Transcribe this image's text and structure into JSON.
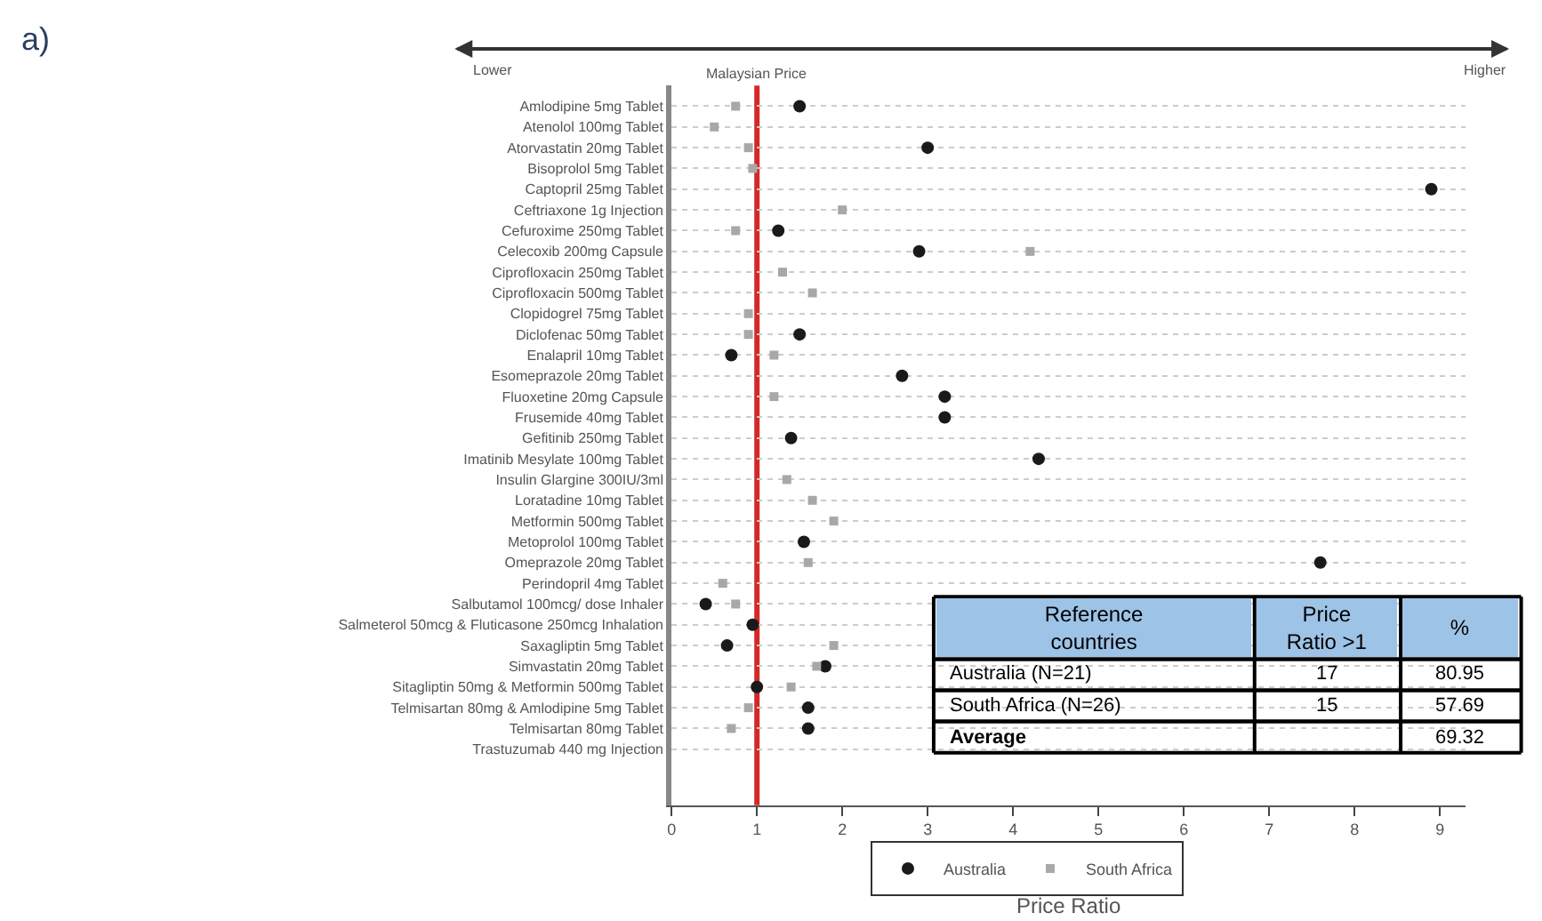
{
  "chart_data": {
    "type": "scatter",
    "xlabel": "Price Ratio",
    "categories": [
      "Amlodipine 5mg Tablet",
      "Atenolol 100mg Tablet",
      "Atorvastatin 20mg Tablet",
      "Bisoprolol 5mg Tablet",
      "Captopril 25mg Tablet",
      "Ceftriaxone 1g Injection",
      "Cefuroxime 250mg Tablet",
      "Celecoxib 200mg Capsule",
      "Ciprofloxacin 250mg Tablet",
      "Ciprofloxacin 500mg Tablet",
      "Clopidogrel 75mg Tablet",
      "Diclofenac 50mg Tablet",
      "Enalapril 10mg Tablet",
      "Esomeprazole 20mg Tablet",
      "Fluoxetine 20mg Capsule",
      "Frusemide 40mg Tablet",
      "Gefitinib 250mg Tablet",
      "Imatinib Mesylate 100mg Tablet",
      "Insulin Glargine 300IU/3ml",
      "Loratadine 10mg Tablet",
      "Metformin 500mg Tablet",
      "Metoprolol 100mg Tablet",
      "Omeprazole 20mg Tablet",
      "Perindopril 4mg Tablet",
      "Salbutamol 100mcg/ dose Inhaler",
      "Salmeterol 50mcg & Fluticasone 250mcg Inhalation",
      "Saxagliptin 5mg Tablet",
      "Simvastatin 20mg Tablet",
      "Sitagliptin 50mg & Metformin 500mg Tablet",
      "Telmisartan 80mg & Amlodipine 5mg Tablet",
      "Telmisartan 80mg Tablet",
      "Trastuzumab 440 mg Injection"
    ],
    "series": [
      {
        "name": "Australia",
        "color": "#1a1a1a",
        "marker": "circle",
        "values": [
          1.5,
          null,
          3.0,
          null,
          8.9,
          null,
          1.25,
          2.9,
          null,
          null,
          null,
          1.5,
          0.7,
          2.7,
          3.2,
          3.2,
          1.4,
          4.3,
          null,
          null,
          null,
          1.55,
          7.6,
          null,
          0.4,
          0.95,
          0.65,
          1.8,
          1.0,
          1.6,
          1.6,
          null
        ]
      },
      {
        "name": "South Africa",
        "color": "#a8a8a8",
        "marker": "square",
        "values": [
          0.75,
          0.5,
          0.9,
          0.95,
          null,
          2.0,
          0.75,
          4.2,
          1.3,
          1.65,
          0.9,
          0.9,
          1.2,
          null,
          1.2,
          null,
          null,
          null,
          1.35,
          1.65,
          1.9,
          null,
          1.6,
          0.6,
          0.75,
          null,
          1.9,
          1.7,
          1.4,
          0.9,
          0.7,
          null
        ]
      }
    ],
    "xlim": [
      0,
      9.3
    ],
    "xticks": [
      0,
      1,
      2,
      3,
      4,
      5,
      6,
      7,
      8,
      9
    ],
    "ref_lines": [
      {
        "axis": "x",
        "value": 1,
        "label": "Malaysian Price",
        "color": "#d62728"
      }
    ],
    "grid": "y",
    "legend": "bottom",
    "orientation": "horizontal",
    "annotations": [
      "a)",
      "Lower",
      "Higher",
      "Reference countries",
      "Price Ratio >1",
      "%",
      "Australia (N=21)",
      "17",
      "80.95",
      "South Africa (N=26)",
      "15",
      "57.69",
      "Average",
      "69.32"
    ]
  }
}
